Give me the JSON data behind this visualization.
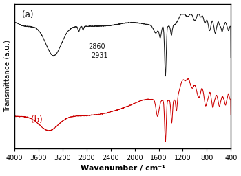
{
  "xlabel": "Wavenumber / cm⁻¹",
  "ylabel": "Transmittance (a.u.)",
  "xlim": [
    4000,
    400
  ],
  "xticks": [
    4000,
    3600,
    3200,
    2800,
    2400,
    2000,
    1600,
    1200,
    800,
    400
  ],
  "color_a": "#1a1a1a",
  "color_b": "#cc0000",
  "label_a": "(a)",
  "label_b": "(b)",
  "annot_2931": "2931",
  "annot_2860": "2860",
  "background": "#ffffff"
}
